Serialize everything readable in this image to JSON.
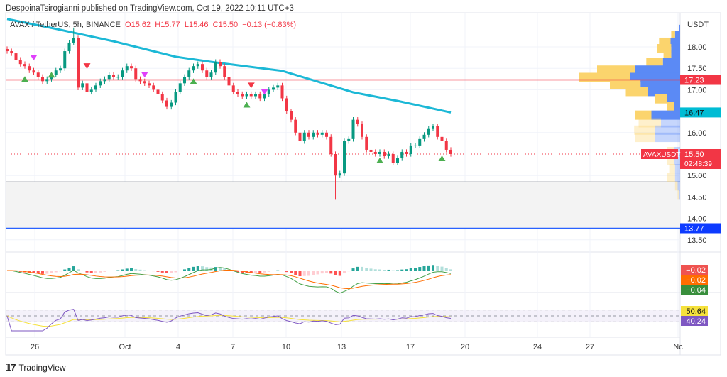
{
  "publisher": "DespoinaTsirogianni published on TradingView.com, Oct 19, 2022 10:11 UTC+3",
  "legend": {
    "symbol": "AVAX / TetherUS, 5h, BINANCE",
    "o": "O15.62",
    "h": "H15.77",
    "l": "L15.46",
    "c": "C15.50",
    "change": "−0.13 (−0.83%)"
  },
  "footer": {
    "brand": "TradingView",
    "logo": "17"
  },
  "colors": {
    "up": "#089981",
    "down": "#f23645",
    "ma": "#1cb8d6",
    "resistance": "#f23645",
    "support": "#2962ff",
    "macd": "#ff6d00",
    "signal": "#43a047",
    "rsi": "#7e57c2",
    "rsi_ma": "#f5e13b",
    "vp_up": "#5b8af5",
    "vp_down": "#fbd46d"
  },
  "chart_data": {
    "type": "candlestick",
    "currency_label": "USDT",
    "price_ticks": [
      "18.00",
      "17.50",
      "17.00",
      "16.00",
      "15.00",
      "14.50",
      "14.00",
      "13.50"
    ],
    "ylim": [
      13.3,
      18.8
    ],
    "time_ticks": [
      "26",
      "Oct",
      "4",
      "7",
      "10",
      "13",
      "17",
      "20",
      "24",
      "27",
      "Nc"
    ],
    "closes": [
      17.9,
      17.85,
      17.7,
      17.6,
      17.55,
      17.45,
      17.4,
      17.3,
      17.2,
      17.25,
      17.35,
      17.45,
      17.5,
      17.9,
      18.1,
      18.2,
      17.05,
      17.15,
      16.95,
      17.0,
      17.1,
      17.2,
      17.25,
      17.35,
      17.3,
      17.3,
      17.45,
      17.55,
      17.5,
      17.25,
      17.2,
      17.15,
      17.1,
      17.0,
      16.9,
      16.75,
      16.6,
      16.7,
      16.95,
      17.15,
      17.3,
      17.45,
      17.55,
      17.6,
      17.45,
      17.3,
      17.4,
      17.65,
      17.55,
      17.3,
      17.1,
      16.95,
      16.9,
      16.85,
      16.9,
      16.85,
      16.9,
      16.8,
      16.9,
      17.0,
      17.05,
      17.1,
      16.8,
      16.5,
      16.3,
      16.0,
      15.8,
      16.0,
      15.9,
      16.0,
      15.95,
      16.0,
      15.9,
      15.5,
      15.0,
      15.05,
      15.8,
      15.85,
      16.3,
      16.2,
      15.9,
      15.6,
      15.55,
      15.5,
      15.55,
      15.45,
      15.5,
      15.3,
      15.4,
      15.55,
      15.5,
      15.7,
      15.7,
      15.85,
      15.95,
      16.1,
      16.15,
      15.9,
      15.8,
      15.6,
      15.5
    ],
    "moving_average": [
      [
        0,
        18.65
      ],
      [
        11,
        18.42
      ],
      [
        24,
        18.13
      ],
      [
        38,
        17.77
      ],
      [
        46,
        17.65
      ],
      [
        62,
        17.44
      ],
      [
        70,
        17.19
      ],
      [
        78,
        16.94
      ],
      [
        88,
        16.74
      ],
      [
        100,
        16.47
      ]
    ],
    "signals": [
      {
        "i": 4,
        "type": "up",
        "price": 17.25
      },
      {
        "i": 10,
        "type": "up",
        "price": 17.35
      },
      {
        "i": 42,
        "type": "up",
        "price": 17.2
      },
      {
        "i": 54,
        "type": "up",
        "price": 16.65
      },
      {
        "i": 84,
        "type": "up",
        "price": 15.35
      },
      {
        "i": 98,
        "type": "up",
        "price": 15.4
      },
      {
        "i": 18,
        "type": "down",
        "price": 17.55
      },
      {
        "i": 55,
        "type": "down",
        "price": 17.1
      },
      {
        "i": 6,
        "type": "purple",
        "price": 17.75
      },
      {
        "i": 31,
        "type": "purple",
        "price": 17.35
      },
      {
        "i": 58,
        "type": "purple",
        "price": 16.95
      }
    ],
    "levels": [
      {
        "price": 17.23,
        "label": "17.23",
        "kind": "resistance"
      },
      {
        "price": 16.47,
        "label": "16.47",
        "kind": "ma"
      },
      {
        "price": 14.85,
        "label": "",
        "kind": "zone-top"
      },
      {
        "price": 13.77,
        "label": "13.77",
        "kind": "support"
      }
    ],
    "last_price": {
      "symbol": "AVAXUSDT",
      "price": "15.50",
      "countdown": "02:48:39",
      "value": 15.5
    },
    "volume_profile": [
      {
        "price": 18.4,
        "up": 2,
        "down": 0
      },
      {
        "price": 18.25,
        "up": 8,
        "down": 6
      },
      {
        "price": 18.1,
        "up": 15,
        "down": 18
      },
      {
        "price": 17.95,
        "up": 14,
        "down": 22
      },
      {
        "price": 17.8,
        "up": 14,
        "down": 12
      },
      {
        "price": 17.62,
        "up": 27,
        "down": 26
      },
      {
        "price": 17.45,
        "up": 70,
        "down": 60
      },
      {
        "price": 17.28,
        "up": 78,
        "down": 80
      },
      {
        "price": 17.12,
        "up": 62,
        "down": 48
      },
      {
        "price": 16.95,
        "up": 50,
        "down": 35
      },
      {
        "price": 16.78,
        "up": 20,
        "down": 20
      },
      {
        "price": 16.6,
        "up": 10,
        "down": 10
      },
      {
        "price": 16.4,
        "up": 45,
        "down": 25
      },
      {
        "price": 16.22,
        "up": 30,
        "down": 35,
        "faded": true
      },
      {
        "price": 16.05,
        "up": 40,
        "down": 32,
        "faded": true
      },
      {
        "price": 15.88,
        "up": 40,
        "down": 30,
        "faded": true
      },
      {
        "price": 15.55,
        "up": 10,
        "down": 10,
        "faded": true
      },
      {
        "price": 15.35,
        "up": 10,
        "down": 10,
        "faded": true
      },
      {
        "price": 15.15,
        "up": 8,
        "down": 8,
        "faded": true
      },
      {
        "price": 14.95,
        "up": 8,
        "down": 12,
        "faded": true
      },
      {
        "price": 14.75,
        "up": 4,
        "down": 4,
        "faded": true
      },
      {
        "price": 14.55,
        "up": 2,
        "down": 2,
        "faded": true
      }
    ],
    "macd_labels": [
      "−0.02",
      "−0.02",
      "−0.04"
    ],
    "rsi_labels": [
      "50.64",
      "40.24"
    ]
  }
}
